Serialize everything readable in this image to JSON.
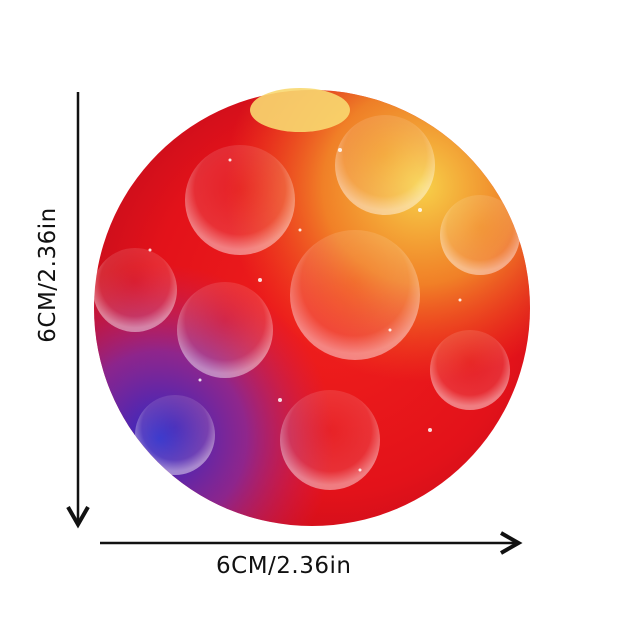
{
  "product": {
    "width_label": "6CM/2.36in",
    "height_label": "6CM/2.36in",
    "colors": {
      "main": "#e8141a",
      "top": "#f5c03a",
      "bottom_left": "#3a2fc0",
      "arrow": "#111111"
    }
  }
}
